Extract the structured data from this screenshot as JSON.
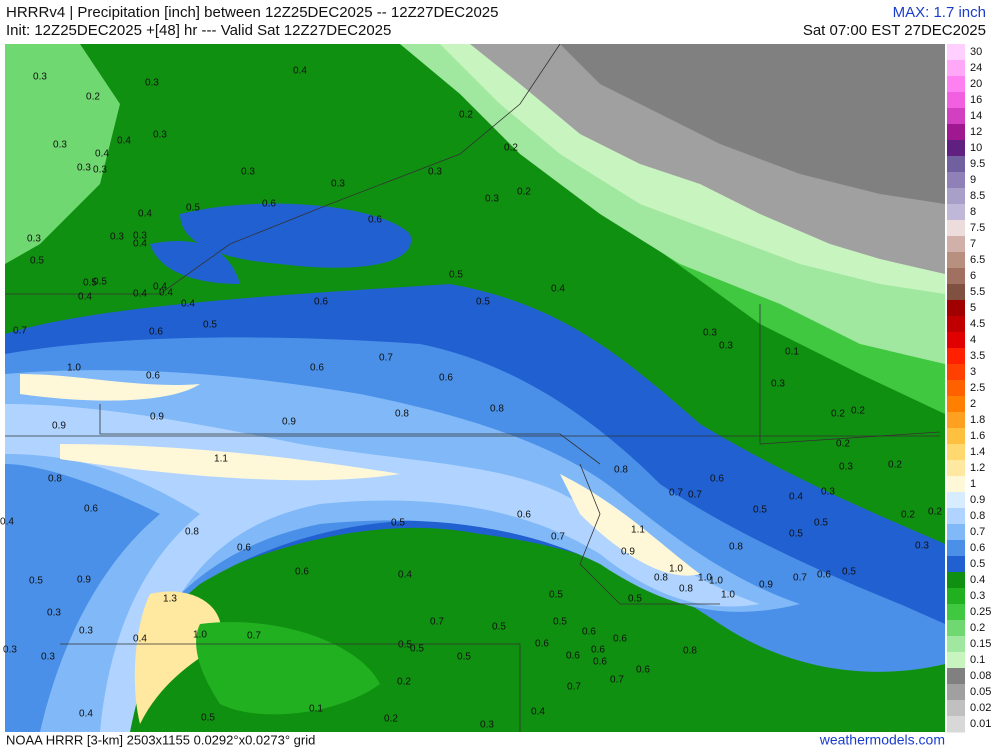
{
  "header": {
    "title_line1": "HRRRv4 | Precipitation [inch] between 12Z25DEC2025 -- 12Z27DEC2025",
    "title_line2": "Init: 12Z25DEC2025 +[48] hr --- Valid Sat 12Z27DEC2025",
    "max": "MAX: 1.7 inch",
    "valid_local": "Sat 07:00 EST 27DEC2025"
  },
  "footer": {
    "grid": "NOAA HRRR [3-km] 2503x1155 0.0292°x0.0273° grid",
    "site": "weathermodels.com"
  },
  "legend": {
    "levels": [
      30,
      24,
      20,
      16,
      14,
      12,
      10,
      9.5,
      9,
      8.5,
      8,
      7.5,
      7,
      6.5,
      6,
      5.5,
      5,
      4.5,
      4,
      3.5,
      3,
      2.5,
      2,
      1.8,
      1.6,
      1.4,
      1.2,
      1,
      0.9,
      0.8,
      0.7,
      0.6,
      0.5,
      0.4,
      0.3,
      0.25,
      0.2,
      0.15,
      0.1,
      0.08,
      0.05,
      0.02,
      0.01
    ],
    "colors": [
      "#ffd0ff",
      "#ffa8f8",
      "#ff80f0",
      "#f060e0",
      "#d040c0",
      "#a01890",
      "#602080",
      "#7060a0",
      "#9080b8",
      "#a8a0c8",
      "#c0b8d8",
      "#ecdcdc",
      "#d0b0a8",
      "#b89080",
      "#a07060",
      "#805040",
      "#a00000",
      "#c00000",
      "#e00000",
      "#ff2000",
      "#ff4000",
      "#ff6000",
      "#ff8000",
      "#ffa020",
      "#ffc040",
      "#ffd870",
      "#ffe8a0",
      "#fff8d8",
      "#d8ecff",
      "#b0d4ff",
      "#80b8f8",
      "#4a90e8",
      "#2060d0",
      "#109010",
      "#20b020",
      "#40c840",
      "#70d870",
      "#a0e8a0",
      "#c8f4c0",
      "#808080",
      "#a0a0a0",
      "#c0c0c0",
      "#d8d8d8"
    ]
  },
  "map": {
    "labels": [
      "0.3",
      "0.2",
      "0.3",
      "0.4",
      "0.3",
      "0.4",
      "0.3",
      "0.4",
      "0.3",
      "0.3",
      "0.3",
      "0.2",
      "0.2",
      "0.3",
      "0.3",
      "0.2",
      "0.3",
      "0.4",
      "0.5",
      "0.6",
      "0.6",
      "0.3",
      "0.3",
      "0.3",
      "0.4",
      "0.5",
      "0.5",
      "0.5",
      "0.4",
      "0.4",
      "0.4",
      "0.4",
      "0.4",
      "0.5",
      "0.5",
      "0.4",
      "0.5",
      "0.6",
      "0.7",
      "0.6",
      "0.3",
      "0.3",
      "0.1",
      "1.0",
      "0.6",
      "0.6",
      "0.7",
      "0.6",
      "0.3",
      "0.9",
      "0.9",
      "0.9",
      "0.8",
      "0.8",
      "0.2",
      "0.2",
      "0.2",
      "1.1",
      "0.8",
      "0.3",
      "0.2",
      "0.8",
      "0.6",
      "0.7",
      "0.7",
      "0.4",
      "0.3",
      "0.4",
      "0.6",
      "0.5",
      "0.5",
      "0.6",
      "0.2",
      "0.2",
      "0.5",
      "0.8",
      "1.1",
      "0.7",
      "0.5",
      "0.6",
      "0.8",
      "0.3",
      "0.9",
      "0.6",
      "0.4",
      "1.0",
      "0.8",
      "1.0",
      "1.0",
      "0.9",
      "0.7",
      "0.6",
      "0.5",
      "0.5",
      "0.9",
      "0.8",
      "1.0",
      "0.5",
      "0.5",
      "1.3",
      "0.3",
      "0.3",
      "1.0",
      "0.7",
      "0.4",
      "0.7",
      "0.5",
      "0.5",
      "0.6",
      "0.6",
      "0.3",
      "0.3",
      "0.5",
      "0.5",
      "0.5",
      "0.6",
      "0.6",
      "0.8",
      "0.6",
      "0.6",
      "0.6",
      "0.7",
      "0.7",
      "0.2",
      "0.4",
      "0.5",
      "0.1",
      "0.2",
      "0.3",
      "0.4"
    ]
  }
}
